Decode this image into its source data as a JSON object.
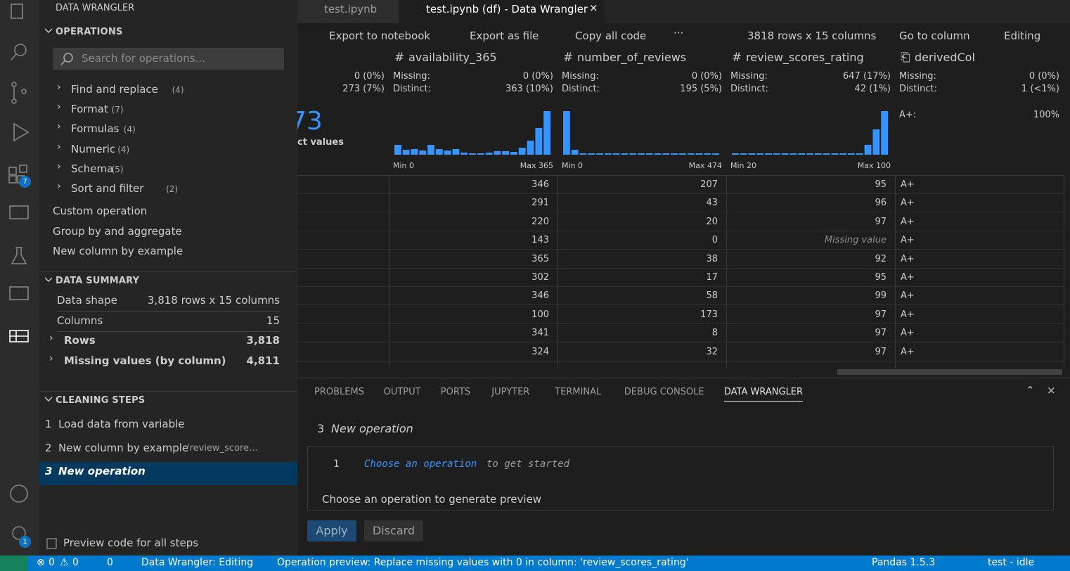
{
  "activity_bar": {
    "extensions_badge": "7",
    "settings_badge": "1"
  },
  "sidebar": {
    "title": "DATA WRANGLER",
    "operations": {
      "header": "OPERATIONS",
      "search_placeholder": "Search for operations...",
      "groups": [
        {
          "label": "Find and replace",
          "count": "(4)"
        },
        {
          "label": "Format",
          "count": "(7)"
        },
        {
          "label": "Formulas",
          "count": "(4)"
        },
        {
          "label": "Numeric",
          "count": "(4)"
        },
        {
          "label": "Schema",
          "count": "(5)"
        },
        {
          "label": "Sort and filter",
          "count": "(2)"
        }
      ],
      "items": [
        "Custom operation",
        "Group by and aggregate",
        "New column by example"
      ]
    },
    "data_summary": {
      "header": "DATA SUMMARY",
      "rows": [
        [
          "Data shape",
          "3,818 rows x 15 columns"
        ],
        [
          "Columns",
          "15"
        ],
        [
          "Rows",
          "3,818"
        ],
        [
          "Missing values (by column)",
          "4,811"
        ]
      ]
    },
    "cleaning_steps": {
      "header": "CLEANING STEPS",
      "steps": [
        {
          "number": "1",
          "label": "Load data from variable"
        },
        {
          "number": "2",
          "label": "New column by example",
          "note": "'review_score..."
        },
        {
          "number": "3",
          "label": "New operation"
        }
      ]
    },
    "footer": "Preview code for all steps"
  },
  "tabs": [
    "test.ipynb",
    "test.ipynb (df) - Data Wrangler"
  ],
  "toolbar": {
    "export_notebook": "Export to notebook",
    "export_file": "Export as file",
    "copy_code": "Copy all code",
    "more": "···",
    "shape": "3818 rows x 15 columns",
    "go_to_column": "Go to column",
    "mode": "Editing"
  },
  "partial_column": {
    "missing": "0 (0%)",
    "distinct": "273 (7%)",
    "big_value": "73",
    "big_caption": "ct values"
  },
  "columns": [
    {
      "name": "availability_365",
      "missing_label": "Missing:",
      "missing": "0 (0%)",
      "distinct_label": "Distinct:",
      "distinct": "363 (10%)",
      "histogram": [
        14,
        7,
        8,
        6,
        14,
        8,
        6,
        8,
        3,
        2,
        2,
        3,
        5,
        5,
        4,
        10,
        20,
        38,
        62
      ],
      "min": "Min 0",
      "max": "Max 365"
    },
    {
      "name": "number_of_reviews",
      "missing_label": "Missing:",
      "missing": "0 (0%)",
      "distinct_label": "Distinct:",
      "distinct": "195 (5%)",
      "histogram": [
        62,
        7,
        2,
        2,
        2,
        2,
        2,
        2,
        2,
        2,
        2,
        2,
        2,
        2,
        2,
        2,
        2,
        2,
        2
      ],
      "min": "Min 0",
      "max": "Max 474"
    },
    {
      "name": "review_scores_rating",
      "missing_label": "Missing:",
      "missing": "647 (17%)",
      "distinct_label": "Distinct:",
      "distinct": "42 (1%)",
      "histogram": [
        2,
        2,
        2,
        2,
        2,
        2,
        2,
        2,
        2,
        2,
        2,
        2,
        2,
        2,
        2,
        2,
        14,
        36,
        62
      ],
      "min": "Min 20",
      "max": "Max 100"
    },
    {
      "name": "derivedCol",
      "missing_label": "Missing:",
      "missing": "0 (0%)",
      "distinct_label": "Distinct:",
      "distinct": "1 (<1%)",
      "top_value": "A+:",
      "top_share": "100%"
    }
  ],
  "rows": [
    [
      346,
      207,
      95,
      "A+"
    ],
    [
      291,
      43,
      96,
      "A+"
    ],
    [
      220,
      20,
      97,
      "A+"
    ],
    [
      143,
      0,
      "Missing value",
      "A+"
    ],
    [
      365,
      38,
      92,
      "A+"
    ],
    [
      302,
      17,
      95,
      "A+"
    ],
    [
      346,
      58,
      99,
      "A+"
    ],
    [
      100,
      173,
      97,
      "A+"
    ],
    [
      341,
      8,
      97,
      "A+"
    ],
    [
      324,
      32,
      97,
      "A+"
    ]
  ],
  "panel": {
    "tabs": [
      "PROBLEMS",
      "OUTPUT",
      "PORTS",
      "JUPYTER",
      "TERMINAL",
      "DEBUG CONSOLE",
      "DATA WRANGLER"
    ],
    "step_number": "3",
    "step_title": "New operation",
    "line_number": "1",
    "code_keyword": "Choose an operation",
    "code_rest": "to get started",
    "message": "Choose an operation to generate preview",
    "apply": "Apply",
    "discard": "Discard"
  },
  "status": {
    "errors": "0",
    "warnings": "0",
    "ports": "0",
    "mode": "Data Wrangler: Editing",
    "preview": "Operation preview: Replace missing values with 0 in column: 'review_scores_rating'",
    "kernel": "Pandas 1.5.3",
    "env": "test - idle"
  }
}
